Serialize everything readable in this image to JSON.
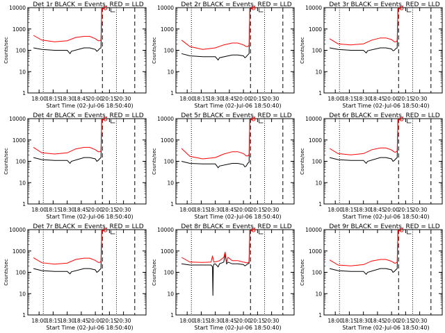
{
  "figure": {
    "rows": 3,
    "cols": 3,
    "colors": {
      "events": "#000000",
      "lld": "#ff0000",
      "axis": "#000000"
    }
  },
  "chart_data": [
    {
      "type": "line",
      "title": "Det 1r BLACK = Events, RED = LLD",
      "xlabel": "Start Time (02-Jul-06 18:50:40)",
      "ylabel": "Counts/sec",
      "x_tick_labels": [
        "18:00",
        "18:15",
        "18:30",
        "18:45",
        "20:00",
        "20:15",
        "20:30"
      ],
      "y_tick_labels": [
        "1",
        "10",
        "100",
        "1000",
        "10000"
      ],
      "ylim": [
        1,
        10000
      ],
      "y_scale": "log",
      "dotted_vlines": [
        "18:07",
        "19:59"
      ],
      "dashed_vlines": [
        "19:49",
        "20:22"
      ],
      "series": [
        {
          "x": [
            0,
            6,
            15,
            24,
            26,
            27,
            36,
            40,
            44,
            45,
            46,
            47,
            48,
            48.5,
            51
          ],
          "y": [
            130,
            110,
            100,
            100,
            70,
            90,
            130,
            130,
            110,
            90,
            100,
            120,
            130,
            9000,
            9500
          ]
        },
        {
          "x": [
            0,
            6,
            15,
            24,
            30,
            36,
            40,
            44,
            46,
            47,
            48,
            48.5,
            51
          ],
          "y": [
            500,
            300,
            250,
            280,
            400,
            450,
            450,
            350,
            280,
            280,
            300,
            9000,
            9500
          ]
        }
      ]
    },
    {
      "type": "line",
      "title": "Det 2r BLACK = Events, RED = LLD",
      "xlabel": "Start Time (02-Jul-06 18:50:40)",
      "ylabel": "Counts/sec",
      "x_tick_labels": [
        "18:00",
        "18:15",
        "18:30",
        "18:45",
        "20:00",
        "20:15",
        "20:30"
      ],
      "y_tick_labels": [
        "1",
        "10",
        "100",
        "1000",
        "10000"
      ],
      "ylim": [
        1,
        10000
      ],
      "y_scale": "log",
      "dotted_vlines": [
        "18:07",
        "19:59"
      ],
      "dashed_vlines": [
        "19:49",
        "20:22"
      ],
      "series": [
        {
          "x": [
            0,
            6,
            15,
            24,
            26,
            27,
            36,
            40,
            44,
            45,
            46,
            47,
            48,
            48.5,
            51
          ],
          "y": [
            70,
            55,
            50,
            50,
            35,
            45,
            60,
            60,
            55,
            45,
            50,
            60,
            70,
            9000,
            9500
          ]
        },
        {
          "x": [
            0,
            6,
            15,
            24,
            30,
            36,
            40,
            44,
            46,
            47,
            48,
            48.5,
            51
          ],
          "y": [
            300,
            150,
            110,
            130,
            180,
            220,
            220,
            180,
            150,
            150,
            170,
            9000,
            9500
          ]
        }
      ]
    },
    {
      "type": "line",
      "title": "Det 3r BLACK = Events, RED = LLD",
      "xlabel": "Start Time (02-Jul-06 18:50:40)",
      "ylabel": "Counts/sec",
      "x_tick_labels": [
        "18:00",
        "18:15",
        "18:30",
        "18:45",
        "20:00",
        "20:15",
        "20:30"
      ],
      "y_tick_labels": [
        "1",
        "10",
        "100",
        "1000",
        "10000"
      ],
      "ylim": [
        1,
        10000
      ],
      "y_scale": "log",
      "dotted_vlines": [
        "18:07",
        "19:59"
      ],
      "dashed_vlines": [
        "19:49",
        "20:22"
      ],
      "series": [
        {
          "x": [
            0,
            6,
            15,
            24,
            26,
            27,
            36,
            40,
            44,
            45,
            46,
            47,
            48,
            48.5,
            51
          ],
          "y": [
            130,
            110,
            100,
            100,
            75,
            95,
            130,
            130,
            115,
            95,
            100,
            120,
            130,
            9000,
            9500
          ]
        },
        {
          "x": [
            0,
            6,
            15,
            24,
            30,
            36,
            40,
            44,
            46,
            47,
            48,
            48.5,
            51
          ],
          "y": [
            350,
            200,
            180,
            200,
            300,
            380,
            380,
            320,
            250,
            250,
            280,
            9000,
            9500
          ]
        }
      ]
    },
    {
      "type": "line",
      "title": "Det 4r BLACK = Events, RED = LLD",
      "xlabel": "Start Time (02-Jul-06 18:50:40)",
      "ylabel": "Counts/sec",
      "x_tick_labels": [
        "18:00",
        "18:15",
        "18:30",
        "18:45",
        "20:00",
        "20:15",
        "20:30"
      ],
      "y_tick_labels": [
        "1",
        "10",
        "100",
        "1000",
        "10000"
      ],
      "ylim": [
        1,
        10000
      ],
      "y_scale": "log",
      "dotted_vlines": [
        "18:07",
        "19:59"
      ],
      "dashed_vlines": [
        "19:49",
        "20:22"
      ],
      "series": [
        {
          "x": [
            0,
            6,
            15,
            24,
            26,
            27,
            36,
            40,
            44,
            45,
            46,
            47,
            48,
            48.5,
            51
          ],
          "y": [
            150,
            120,
            110,
            110,
            80,
            100,
            150,
            150,
            130,
            100,
            110,
            130,
            150,
            9000,
            9500
          ]
        },
        {
          "x": [
            0,
            6,
            15,
            24,
            30,
            36,
            40,
            44,
            46,
            47,
            48,
            48.5,
            51
          ],
          "y": [
            450,
            250,
            220,
            250,
            380,
            450,
            450,
            350,
            280,
            280,
            300,
            9000,
            9500
          ]
        }
      ]
    },
    {
      "type": "line",
      "title": "Det 5r BLACK = Events, RED = LLD",
      "xlabel": "Start Time (02-Jul-06 18:50:40)",
      "ylabel": "Counts/sec",
      "x_tick_labels": [
        "18:00",
        "18:15",
        "18:30",
        "18:45",
        "20:00",
        "20:15",
        "20:30"
      ],
      "y_tick_labels": [
        "1",
        "10",
        "100",
        "1000",
        "10000"
      ],
      "ylim": [
        1,
        10000
      ],
      "y_scale": "log",
      "dotted_vlines": [
        "18:07",
        "19:59"
      ],
      "dashed_vlines": [
        "19:49",
        "20:22"
      ],
      "series": [
        {
          "x": [
            0,
            6,
            15,
            24,
            26,
            27,
            36,
            40,
            44,
            45,
            46,
            47,
            48,
            48.5,
            51
          ],
          "y": [
            100,
            80,
            75,
            75,
            50,
            60,
            80,
            80,
            70,
            55,
            60,
            80,
            90,
            9000,
            9500
          ]
        },
        {
          "x": [
            0,
            6,
            15,
            24,
            30,
            36,
            40,
            44,
            46,
            47,
            48,
            48.5,
            51
          ],
          "y": [
            400,
            170,
            130,
            150,
            220,
            280,
            280,
            230,
            180,
            180,
            200,
            9000,
            9500
          ]
        }
      ]
    },
    {
      "type": "line",
      "title": "Det 6r BLACK = Events, RED = LLD",
      "xlabel": "Start Time (02-Jul-06 18:50:40)",
      "ylabel": "Counts/sec",
      "x_tick_labels": [
        "18:00",
        "18:15",
        "18:30",
        "18:45",
        "20:00",
        "20:15",
        "20:30"
      ],
      "y_tick_labels": [
        "1",
        "10",
        "100",
        "1000",
        "10000"
      ],
      "ylim": [
        1,
        10000
      ],
      "y_scale": "log",
      "dotted_vlines": [
        "18:07",
        "19:59"
      ],
      "dashed_vlines": [
        "19:49",
        "20:22"
      ],
      "series": [
        {
          "x": [
            0,
            6,
            15,
            24,
            26,
            27,
            36,
            40,
            44,
            45,
            46,
            47,
            48,
            48.5,
            51
          ],
          "y": [
            150,
            120,
            110,
            110,
            80,
            100,
            150,
            150,
            130,
            100,
            110,
            130,
            150,
            9000,
            9500
          ]
        },
        {
          "x": [
            0,
            6,
            15,
            24,
            30,
            36,
            40,
            44,
            46,
            47,
            48,
            48.5,
            51
          ],
          "y": [
            400,
            230,
            200,
            230,
            350,
            420,
            420,
            340,
            270,
            270,
            300,
            9000,
            9500
          ]
        }
      ]
    },
    {
      "type": "line",
      "title": "Det 7r BLACK = Events, RED = LLD",
      "xlabel": "Start Time (02-Jul-06 18:50:40)",
      "ylabel": "Counts/sec",
      "x_tick_labels": [
        "18:00",
        "18:15",
        "18:30",
        "18:45",
        "20:00",
        "20:15",
        "20:30"
      ],
      "y_tick_labels": [
        "1",
        "10",
        "100",
        "1000",
        "10000"
      ],
      "ylim": [
        1,
        10000
      ],
      "y_scale": "log",
      "dotted_vlines": [
        "18:07",
        "19:59"
      ],
      "dashed_vlines": [
        "19:49",
        "20:22"
      ],
      "series": [
        {
          "x": [
            0,
            6,
            15,
            24,
            26,
            27,
            36,
            40,
            44,
            45,
            46,
            47,
            48,
            48.5,
            51
          ],
          "y": [
            150,
            120,
            110,
            110,
            85,
            105,
            150,
            150,
            130,
            100,
            110,
            130,
            150,
            9000,
            9500
          ]
        },
        {
          "x": [
            0,
            6,
            15,
            24,
            30,
            36,
            40,
            44,
            46,
            47,
            48,
            48.5,
            51
          ],
          "y": [
            480,
            280,
            240,
            270,
            400,
            460,
            460,
            360,
            290,
            290,
            320,
            9000,
            9500
          ]
        }
      ]
    },
    {
      "type": "line",
      "title": "Det 8r BLACK = Events, RED = LLD",
      "xlabel": "Start Time (02-Jul-06 18:50:40)",
      "ylabel": "Counts/sec",
      "x_tick_labels": [
        "18:00",
        "18:15",
        "18:30",
        "18:45",
        "20:00",
        "20:15",
        "20:30"
      ],
      "y_tick_labels": [
        "1",
        "10",
        "100",
        "1000",
        "10000"
      ],
      "ylim": [
        1,
        10000
      ],
      "y_scale": "log",
      "dotted_vlines": [
        "18:07",
        "19:59"
      ],
      "dashed_vlines": [
        "19:49",
        "20:22"
      ],
      "series": [
        {
          "x": [
            0,
            6,
            15,
            21,
            22,
            22.3,
            22.6,
            23,
            24,
            26,
            27,
            30,
            31,
            32,
            33,
            36,
            40,
            44,
            45,
            46,
            47,
            48,
            48.5,
            51
          ],
          "y": [
            250,
            220,
            220,
            220,
            180,
            8,
            200,
            240,
            250,
            180,
            250,
            300,
            700,
            250,
            300,
            250,
            250,
            230,
            200,
            220,
            250,
            260,
            9000,
            9500
          ]
        },
        {
          "x": [
            0,
            6,
            15,
            21,
            22,
            23,
            24,
            27,
            30,
            31,
            32,
            33,
            36,
            40,
            44,
            46,
            47,
            48,
            48.5,
            51
          ],
          "y": [
            500,
            300,
            290,
            300,
            600,
            300,
            310,
            350,
            500,
            900,
            300,
            500,
            350,
            350,
            300,
            280,
            280,
            300,
            9000,
            9500
          ]
        }
      ]
    },
    {
      "type": "line",
      "title": "Det 9r BLACK = Events, RED = LLD",
      "xlabel": "Start Time (02-Jul-06 18:50:40)",
      "ylabel": "Counts/sec",
      "x_tick_labels": [
        "18:00",
        "18:15",
        "18:30",
        "18:45",
        "20:00",
        "20:15",
        "20:30"
      ],
      "y_tick_labels": [
        "1",
        "10",
        "100",
        "1000",
        "10000"
      ],
      "ylim": [
        1,
        10000
      ],
      "y_scale": "log",
      "dotted_vlines": [
        "18:07",
        "19:59"
      ],
      "dashed_vlines": [
        "19:49",
        "20:22"
      ],
      "series": [
        {
          "x": [
            0,
            6,
            15,
            24,
            26,
            27,
            36,
            40,
            44,
            45,
            46,
            47,
            48,
            48.5,
            51
          ],
          "y": [
            150,
            120,
            110,
            110,
            80,
            100,
            150,
            150,
            130,
            100,
            110,
            130,
            150,
            9000,
            9500
          ]
        },
        {
          "x": [
            0,
            6,
            15,
            24,
            30,
            36,
            40,
            44,
            46,
            47,
            48,
            48.5,
            51
          ],
          "y": [
            380,
            220,
            200,
            230,
            340,
            400,
            400,
            330,
            270,
            270,
            300,
            9000,
            9500
          ]
        }
      ]
    }
  ]
}
